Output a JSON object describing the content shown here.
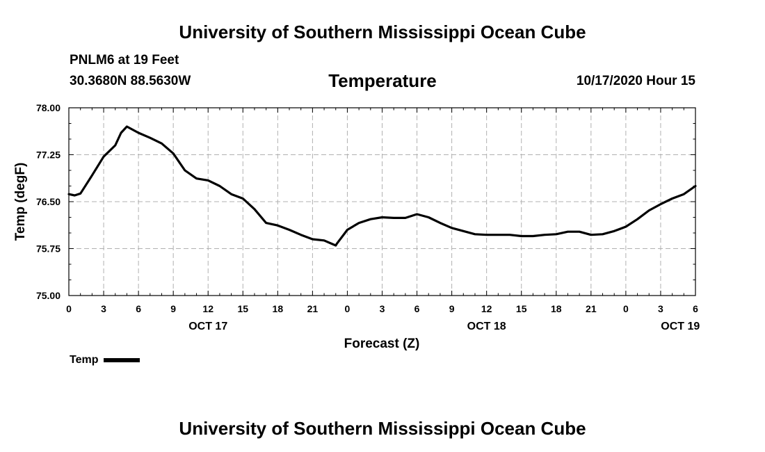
{
  "header": {
    "top_title": "University of Southern Mississippi Ocean Cube",
    "station": "PNLM6 at 19 Feet",
    "coords": "30.3680N 88.5630W",
    "chart_title": "Temperature",
    "timestamp": "10/17/2020 Hour 15"
  },
  "footer": {
    "bottom_title": "University of Southern Mississippi Ocean Cube"
  },
  "legend": {
    "label": "Temp"
  },
  "colors": {
    "line": "#000000",
    "grid": "#b0b0b0"
  },
  "chart_data": {
    "type": "line",
    "title": "Temperature",
    "xlabel": "Forecast (Z)",
    "ylabel": "Temp (degF)",
    "xlim": [
      0,
      54
    ],
    "ylim": [
      75.0,
      78.0
    ],
    "grid": true,
    "legend_position": "bottom-left",
    "x_ticks": [
      0,
      3,
      6,
      9,
      12,
      15,
      18,
      21,
      24,
      27,
      30,
      33,
      36,
      39,
      42,
      45,
      48,
      51,
      54
    ],
    "x_tick_labels": [
      "0",
      "3",
      "6",
      "9",
      "12",
      "15",
      "18",
      "21",
      "0",
      "3",
      "6",
      "9",
      "12",
      "15",
      "18",
      "21",
      "0",
      "3",
      "6"
    ],
    "y_ticks": [
      75.0,
      75.75,
      76.5,
      77.25,
      78.0
    ],
    "y_tick_labels": [
      "75.00",
      "75.75",
      "76.50",
      "77.25",
      "78.00"
    ],
    "day_labels": [
      {
        "x": 12,
        "label": "OCT 17"
      },
      {
        "x": 36,
        "label": "OCT 18"
      },
      {
        "x": 52.7,
        "label": "OCT 19"
      }
    ],
    "series": [
      {
        "name": "Temp",
        "x": [
          0,
          0.5,
          1,
          2,
          3,
          4,
          4.5,
          5,
          6,
          7,
          8,
          9,
          10,
          11,
          12,
          13,
          14,
          15,
          16,
          17,
          18,
          19,
          20,
          21,
          22,
          23,
          23.1,
          24,
          25,
          26,
          27,
          28,
          29,
          30,
          31,
          32,
          33,
          34,
          35,
          36,
          37,
          38,
          39,
          40,
          41,
          42,
          43,
          44,
          45,
          46,
          47,
          48,
          49,
          50,
          51,
          52,
          53,
          54
        ],
        "values": [
          76.62,
          76.6,
          76.63,
          76.92,
          77.22,
          77.4,
          77.6,
          77.7,
          77.6,
          77.52,
          77.43,
          77.27,
          77.0,
          76.87,
          76.84,
          76.75,
          76.62,
          76.55,
          76.38,
          76.16,
          76.12,
          76.05,
          75.97,
          75.9,
          75.88,
          75.8,
          75.83,
          76.05,
          76.16,
          76.22,
          76.25,
          76.24,
          76.24,
          76.3,
          76.25,
          76.16,
          76.08,
          76.03,
          75.98,
          75.97,
          75.97,
          75.97,
          75.95,
          75.95,
          75.97,
          75.98,
          76.02,
          76.02,
          75.97,
          75.98,
          76.03,
          76.1,
          76.22,
          76.36,
          76.46,
          76.55,
          76.62,
          76.75
        ]
      }
    ]
  }
}
